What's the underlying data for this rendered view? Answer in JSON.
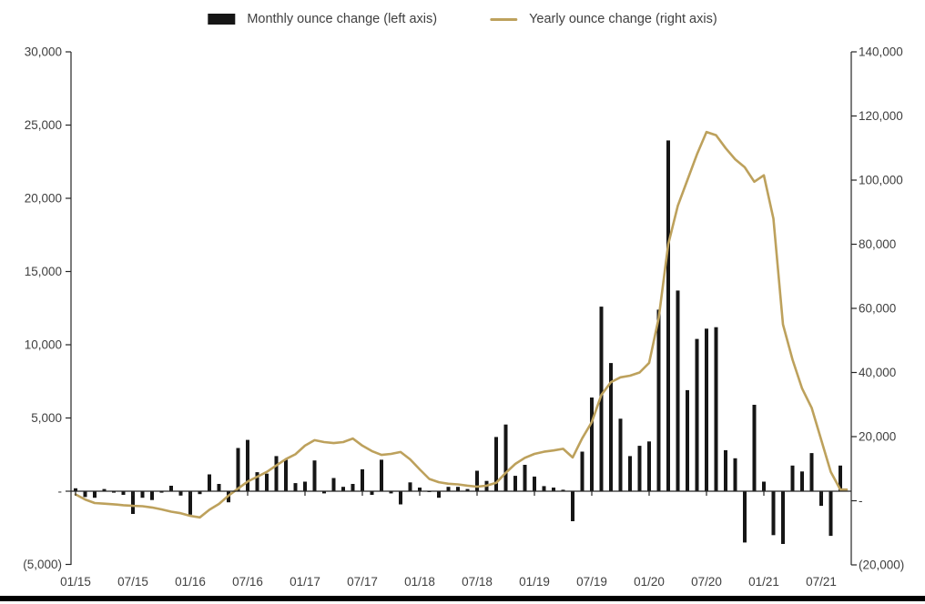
{
  "legend": {
    "monthly_label": "Monthly ounce change (left axis)",
    "yearly_label": "Yearly ounce change (right axis)"
  },
  "colors": {
    "bar": "#161616",
    "line": "#bda15c",
    "text": "#3f3f3f",
    "axis": "#262626",
    "background": "#ffffff",
    "bottom_strip": "#000000"
  },
  "left_axis": {
    "tick_labels": [
      "30,000",
      "25,000",
      "20,000",
      "15,000",
      "10,000",
      "5,000",
      "-",
      "(5,000)"
    ],
    "tick_values": [
      30000,
      25000,
      20000,
      15000,
      10000,
      5000,
      0,
      -5000
    ]
  },
  "right_axis": {
    "tick_labels": [
      "140,000",
      "120,000",
      "100,000",
      "80,000",
      "60,000",
      "40,000",
      "20,000",
      "-",
      "(20,000)"
    ],
    "tick_values": [
      140000,
      120000,
      100000,
      80000,
      60000,
      40000,
      20000,
      0,
      -20000
    ]
  },
  "x_axis": {
    "tick_labels": [
      "01/15",
      "07/15",
      "01/16",
      "07/16",
      "01/17",
      "07/17",
      "01/18",
      "07/18",
      "01/19",
      "07/19",
      "01/20",
      "07/20",
      "01/21",
      "07/21"
    ]
  },
  "chart_data": {
    "type": "combo",
    "title": "",
    "grid": false,
    "legend_position": "top",
    "left_axis_range": [
      -5000,
      30000
    ],
    "right_axis_range": [
      -20000,
      140000
    ],
    "x": [
      "01/15",
      "02/15",
      "03/15",
      "04/15",
      "05/15",
      "06/15",
      "07/15",
      "08/15",
      "09/15",
      "10/15",
      "11/15",
      "12/15",
      "01/16",
      "02/16",
      "03/16",
      "04/16",
      "05/16",
      "06/16",
      "07/16",
      "08/16",
      "09/16",
      "10/16",
      "11/16",
      "12/16",
      "01/17",
      "02/17",
      "03/17",
      "04/17",
      "05/17",
      "06/17",
      "07/17",
      "08/17",
      "09/17",
      "10/17",
      "11/17",
      "12/17",
      "01/18",
      "02/18",
      "03/18",
      "04/18",
      "05/18",
      "06/18",
      "07/18",
      "08/18",
      "09/18",
      "10/18",
      "11/18",
      "12/18",
      "01/19",
      "02/19",
      "03/19",
      "04/19",
      "05/19",
      "06/19",
      "07/19",
      "08/19",
      "09/19",
      "10/19",
      "11/19",
      "12/19",
      "01/20",
      "02/20",
      "03/20",
      "04/20",
      "05/20",
      "06/20",
      "07/20",
      "08/20",
      "09/20",
      "10/20",
      "11/20",
      "12/20",
      "01/21",
      "02/21",
      "03/21",
      "04/21",
      "05/21",
      "06/21",
      "07/21",
      "08/21",
      "09/21"
    ],
    "series": [
      {
        "name": "Monthly ounce change (left axis)",
        "type": "bar",
        "axis": "left",
        "values": [
          200,
          -400,
          -450,
          150,
          -100,
          -250,
          -1550,
          -450,
          -600,
          -100,
          370,
          -300,
          -1600,
          -200,
          1150,
          500,
          -760,
          2950,
          3500,
          1300,
          1200,
          2400,
          2150,
          550,
          650,
          2100,
          -150,
          900,
          300,
          500,
          1500,
          -250,
          2150,
          -150,
          -900,
          600,
          250,
          -50,
          -450,
          300,
          300,
          150,
          1400,
          700,
          3700,
          4550,
          1050,
          1800,
          1000,
          350,
          250,
          100,
          -2050,
          2700,
          6400,
          12600,
          8750,
          4950,
          2400,
          3100,
          3400,
          12400,
          23950,
          13700,
          6900,
          10400,
          11100,
          11200,
          2800,
          2250,
          -3500,
          5900,
          650,
          -3000,
          -3600,
          1750,
          1350,
          2600,
          -1000,
          -3050,
          1750
        ]
      },
      {
        "name": "Yearly ounce change (right axis)",
        "type": "line",
        "axis": "right",
        "values": [
          2000,
          400,
          -700,
          -900,
          -1100,
          -1400,
          -1600,
          -1700,
          -2100,
          -2700,
          -3400,
          -3900,
          -4700,
          -5200,
          -2800,
          -1000,
          1600,
          3800,
          6000,
          7500,
          9000,
          11000,
          13000,
          14500,
          17200,
          18900,
          18300,
          18000,
          18300,
          19400,
          17200,
          15500,
          14300,
          14600,
          15200,
          12900,
          9800,
          6800,
          5800,
          5300,
          5100,
          4700,
          4400,
          4700,
          5600,
          8700,
          11500,
          13400,
          14600,
          15300,
          15700,
          16200,
          13500,
          19500,
          24500,
          33000,
          37000,
          38500,
          39000,
          40000,
          43000,
          57000,
          80000,
          92000,
          100000,
          108000,
          115000,
          114000,
          110000,
          106500,
          104000,
          99500,
          101500,
          88000,
          55000,
          44000,
          35000,
          29000,
          19000,
          9000,
          3500
        ]
      }
    ]
  }
}
